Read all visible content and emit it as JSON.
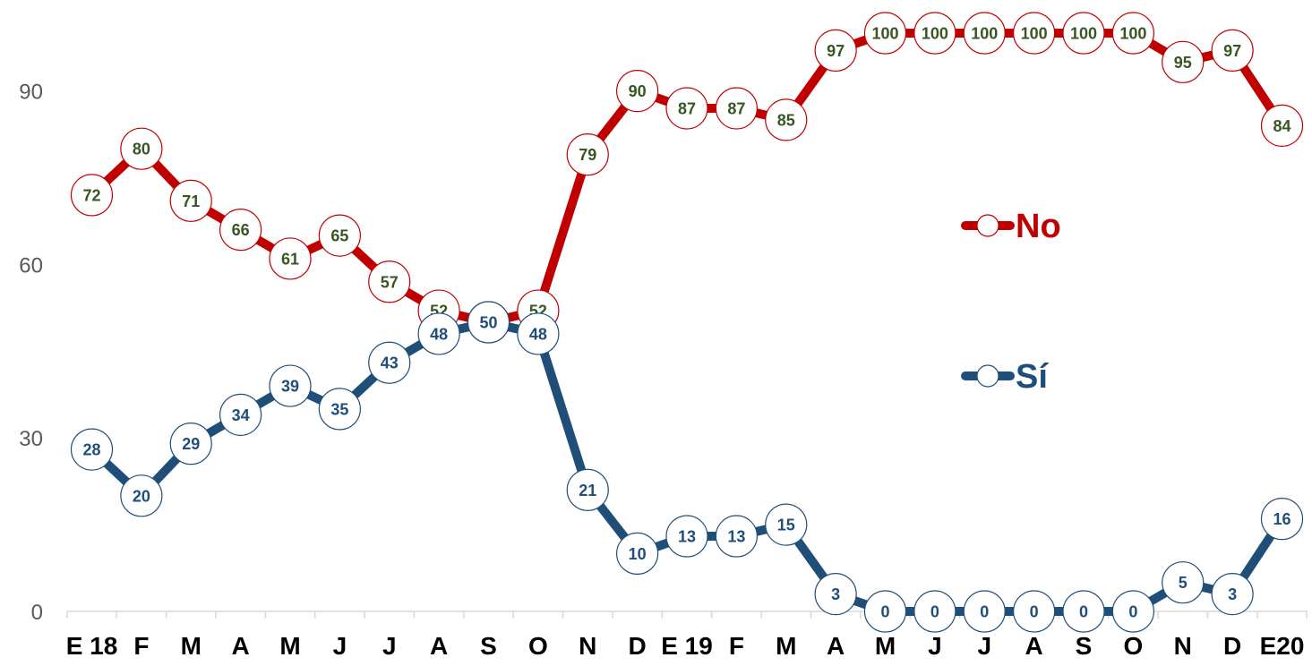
{
  "chart_data": {
    "type": "line",
    "categories": [
      "E 18",
      "F",
      "M",
      "A",
      "M",
      "J",
      "J",
      "A",
      "S",
      "O",
      "N",
      "D",
      "E 19",
      "F",
      "M",
      "A",
      "M",
      "J",
      "J",
      "A",
      "S",
      "O",
      "N",
      "D",
      "E20"
    ],
    "ylim": [
      0,
      100
    ],
    "yticks": [
      0,
      30,
      60,
      90
    ],
    "grid": false,
    "legend_position": "right",
    "series": [
      {
        "name": "No",
        "color": "#C00000",
        "label_color": "#375623",
        "values": [
          72,
          80,
          71,
          66,
          61,
          65,
          57,
          52,
          50,
          52,
          79,
          90,
          87,
          87,
          85,
          97,
          100,
          100,
          100,
          100,
          100,
          100,
          95,
          97,
          84
        ],
        "labels": [
          "72",
          "80",
          "71",
          "66",
          "61",
          "65",
          "57",
          "52",
          "",
          "52",
          "79",
          "90",
          "87",
          "87",
          "85",
          "97",
          "100",
          "100",
          "100",
          "100",
          "100",
          "100",
          "95",
          "97",
          "84"
        ]
      },
      {
        "name": "Sí",
        "color": "#1F4E79",
        "label_color": "#1F4E79",
        "values": [
          28,
          20,
          29,
          34,
          39,
          35,
          43,
          48,
          50,
          48,
          21,
          10,
          13,
          13,
          15,
          3,
          0,
          0,
          0,
          0,
          0,
          0,
          5,
          3,
          16
        ],
        "labels": [
          "28",
          "20",
          "29",
          "34",
          "39",
          "35",
          "43",
          "48",
          "50",
          "48",
          "21",
          "10",
          "13",
          "13",
          "15",
          "3",
          "0",
          "0",
          "0",
          "0",
          "0",
          "0",
          "5",
          "3",
          "16"
        ]
      }
    ]
  }
}
